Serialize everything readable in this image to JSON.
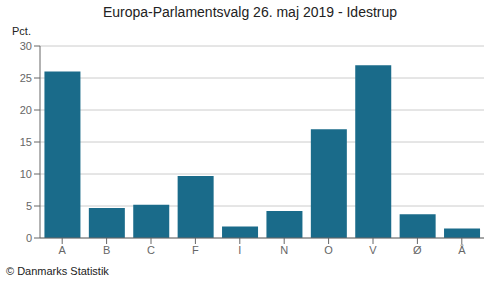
{
  "chart_data": {
    "type": "bar",
    "title": "Europa-Parlamentsvalg 26. maj 2019 - Idestrup",
    "ylabel": "Pct.",
    "annotations": [
      "© Danmarks Statistik"
    ],
    "categories": [
      "A",
      "B",
      "C",
      "F",
      "I",
      "N",
      "O",
      "V",
      "Ø",
      "Å"
    ],
    "values": [
      26.0,
      4.7,
      5.2,
      9.7,
      1.8,
      4.2,
      17.0,
      27.0,
      3.7,
      1.5
    ],
    "color": "#1a6b8a",
    "ylim": [
      0,
      30
    ],
    "yticks": [
      0,
      5,
      10,
      15,
      20,
      25,
      30
    ],
    "grid": true
  }
}
